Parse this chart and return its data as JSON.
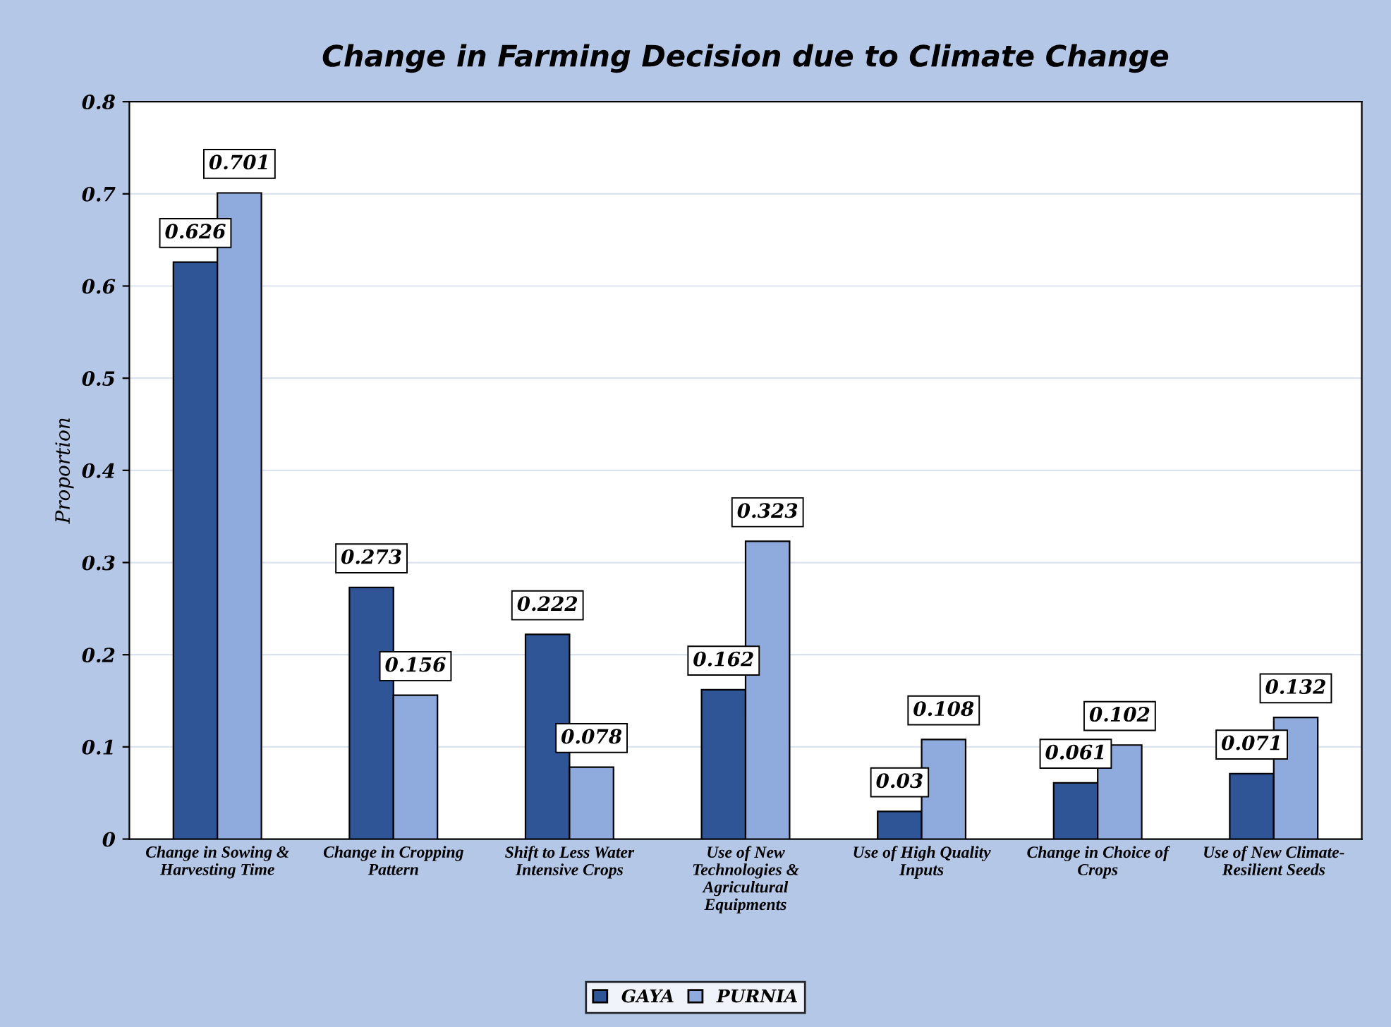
{
  "chart_data": {
    "type": "bar",
    "title": "Change in Farming Decision due to Climate Change",
    "ylabel": "Proportion",
    "categories": [
      "Change in Sowing &\nHarvesting Time",
      "Change in Cropping\nPattern",
      "Shift to Less Water\nIntensive Crops",
      "Use of New\nTechnologies &\nAgricultural\nEquipments",
      "Use of High Quality\nInputs",
      "Change in Choice of\nCrops",
      "Use of New Climate-\nResilient Seeds"
    ],
    "series": [
      {
        "name": "GAYA",
        "color": "#2f5597",
        "values": [
          0.626,
          0.273,
          0.222,
          0.162,
          0.03,
          0.061,
          0.071
        ]
      },
      {
        "name": "PURNIA",
        "color": "#8faadc",
        "values": [
          0.701,
          0.156,
          0.078,
          0.323,
          0.108,
          0.102,
          0.132
        ]
      }
    ],
    "ylim": [
      0,
      0.8
    ],
    "yticks": [
      {
        "value": 0,
        "label": "0"
      },
      0.1,
      0.2,
      0.3,
      0.4,
      0.5,
      0.6,
      0.7,
      0.8
    ],
    "grid": "y",
    "legend": "bottom",
    "data_labels": true
  }
}
